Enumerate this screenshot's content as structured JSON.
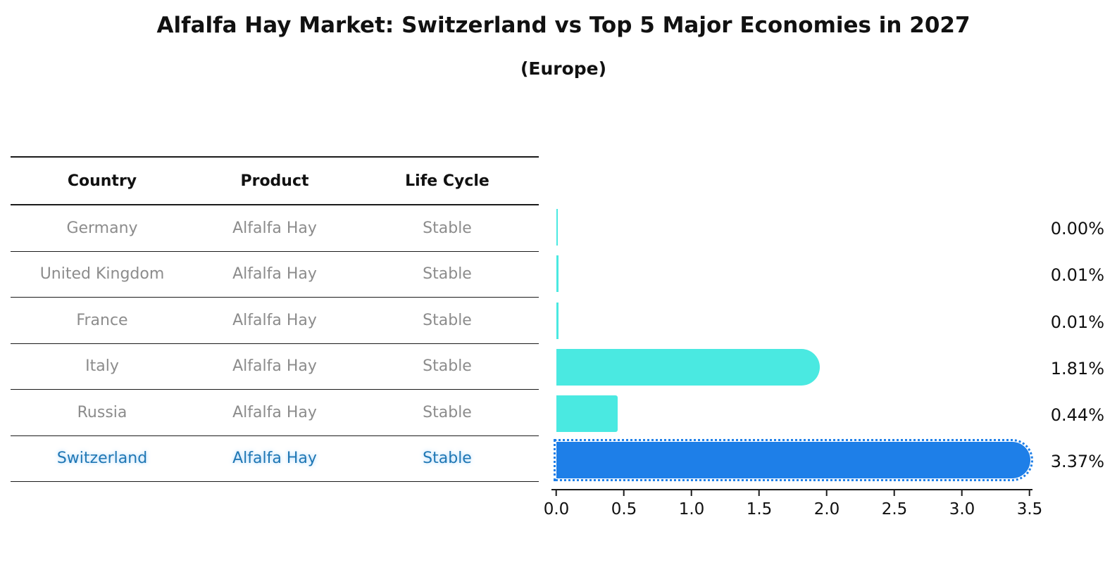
{
  "title": "Alfalfa Hay Market: Switzerland vs Top 5 Major Economies in 2027",
  "subtitle": "(Europe)",
  "table": {
    "headers": [
      "Country",
      "Product",
      "Life Cycle"
    ],
    "rows": [
      {
        "country": "Germany",
        "product": "Alfalfa Hay",
        "life_cycle": "Stable",
        "highlight": false
      },
      {
        "country": "United Kingdom",
        "product": "Alfalfa Hay",
        "life_cycle": "Stable",
        "highlight": false
      },
      {
        "country": "France",
        "product": "Alfalfa Hay",
        "life_cycle": "Stable",
        "highlight": false
      },
      {
        "country": "Italy",
        "product": "Alfalfa Hay",
        "life_cycle": "Stable",
        "highlight": false
      },
      {
        "country": "Russia",
        "product": "Alfalfa Hay",
        "life_cycle": "Stable",
        "highlight": false
      },
      {
        "country": "Switzerland",
        "product": "Alfalfa Hay",
        "life_cycle": "Stable",
        "highlight": true
      }
    ]
  },
  "chart_data": {
    "type": "bar",
    "orientation": "horizontal",
    "title": "Alfalfa Hay Market: Switzerland vs Top 5 Major Economies in 2027 (Europe)",
    "categories": [
      "Germany",
      "United Kingdom",
      "France",
      "Italy",
      "Russia",
      "Switzerland"
    ],
    "values": [
      0.0,
      0.01,
      0.01,
      1.81,
      0.44,
      3.37
    ],
    "value_labels": [
      "0.00%",
      "0.01%",
      "0.01%",
      "1.81%",
      "0.44%",
      "3.37%"
    ],
    "unit": "%",
    "xlim": [
      0,
      3.5
    ],
    "x_ticks": [
      "0.0",
      "0.5",
      "1.0",
      "1.5",
      "2.0",
      "2.5",
      "3.0",
      "3.5"
    ],
    "grid": false,
    "legend": "none",
    "bar_colors": [
      "#4ae9e1",
      "#4ae9e1",
      "#4ae9e1",
      "#4ae9e1",
      "#4ae9e1",
      "#1e7fe8"
    ],
    "highlight_index": 5,
    "highlight_color": "#1e7fe8",
    "base_color": "#4ae9e1",
    "highlight_text_color": "#1f77b4"
  }
}
